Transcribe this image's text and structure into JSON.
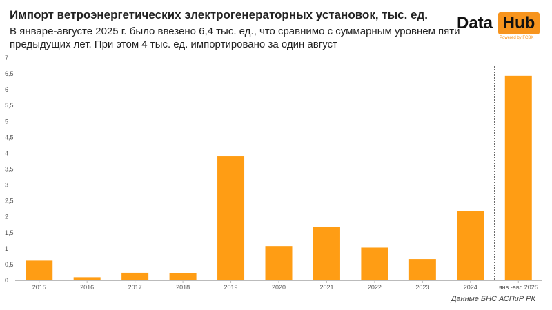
{
  "title": "Импорт ветроэнергетических электрогенераторных установок, тыс. ед.",
  "subtitle": "В январе-августе 2025 г. было ввезено 6,4 тыс. ед., что сравнимо с суммарным уровнем пяти предыдущих лет. При этом 4 тыс. ед. импортировано за один август",
  "logo": {
    "data": "Data",
    "hub": "Hub",
    "powered": "Powered by FCBK"
  },
  "source": "Данные БНС АСПиР РК",
  "colors": {
    "bar": "#FF9D14",
    "axis": "#BBBBBB",
    "text": "#555555",
    "divider": "#666666"
  },
  "chart_data": {
    "type": "bar",
    "categories": [
      "2015",
      "2016",
      "2017",
      "2018",
      "2019",
      "2020",
      "2021",
      "2022",
      "2023",
      "2024",
      "янв.-авг. 2025"
    ],
    "values": [
      0.62,
      0.1,
      0.24,
      0.23,
      3.9,
      1.08,
      1.69,
      1.03,
      0.67,
      2.17,
      6.44
    ],
    "yticks": [
      "0",
      "0,5",
      "1",
      "1,5",
      "2",
      "2,5",
      "3",
      "3,5",
      "4",
      "4,5",
      "5",
      "5,5",
      "6",
      "6,5",
      "7"
    ],
    "ylim": [
      0,
      7
    ],
    "grid": false,
    "divider_before_last": true
  }
}
